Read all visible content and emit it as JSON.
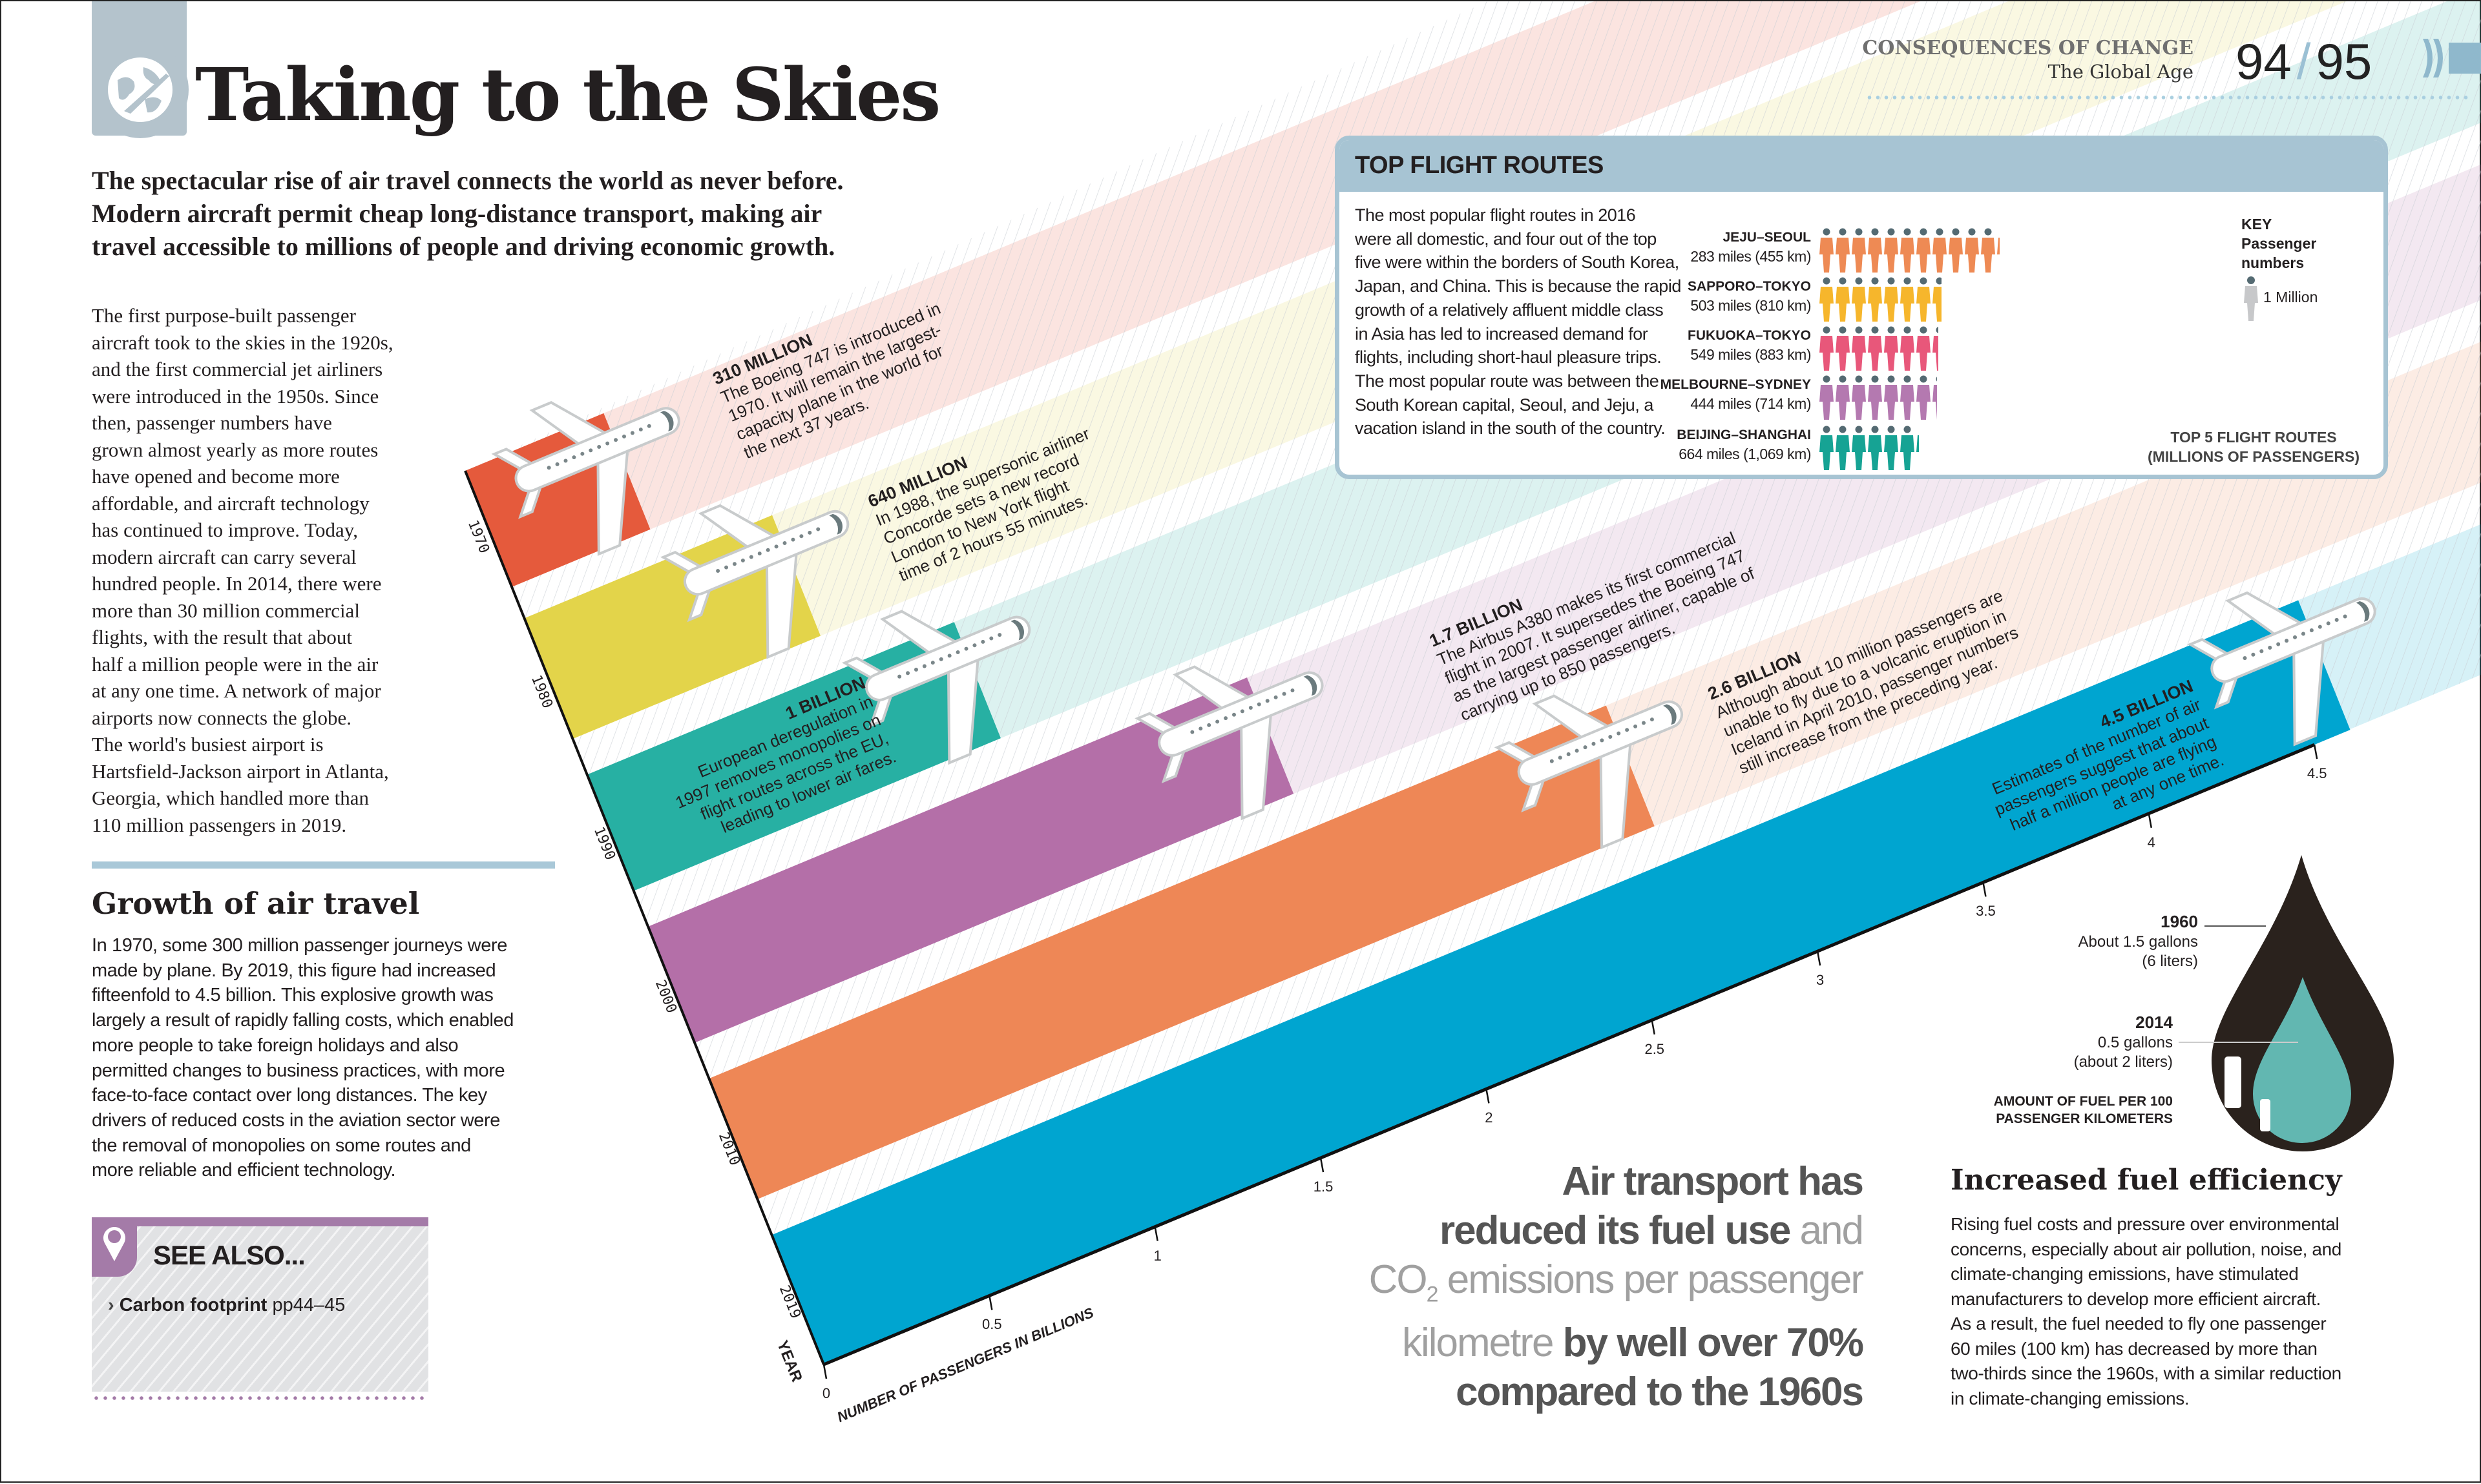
{
  "header": {
    "section": "CONSEQUENCES OF CHANGE",
    "subsection": "The Global Age",
    "page_left": "94",
    "page_sep": "/",
    "page_right": "95",
    "accent": "#a7c4d3"
  },
  "title": "Taking to the Skies",
  "title_icon": "globe-plane-icon",
  "intro": [
    "The spectacular rise of air travel connects the world as never before.",
    "Modern aircraft permit cheap long-distance transport, making air",
    "travel accessible to millions of people and driving economic growth."
  ],
  "body": [
    "The first purpose-built passenger",
    "aircraft took to the skies in the 1920s,",
    "and the first commercial jet airliners",
    "were introduced in the 1950s. Since",
    "then, passenger numbers have",
    "grown almost yearly as more routes",
    "have opened and become more",
    "affordable, and aircraft technology",
    "has continued to improve. Today,",
    "modern aircraft can carry several",
    "hundred people. In 2014, there were",
    "more than 30 million commercial",
    "flights, with the result that about",
    "half a million people were in the air",
    "at any one time. A network of major",
    "airports now connects the globe.",
    "The world's busiest airport is",
    "Hartsfield-Jackson airport in Atlanta,",
    "Georgia, which handled more than",
    "110 million passengers in 2019."
  ],
  "growth": {
    "heading": "Growth of air travel",
    "lines": [
      "In 1970, some 300 million passenger journeys were",
      "made by plane. By 2019, this figure had increased",
      "fifteenfold to 4.5 billion. This explosive growth was",
      "largely a result of rapidly falling costs, which enabled",
      "more people to take foreign holidays and also",
      "permitted changes to business practices, with more",
      "face-to-face contact over long distances. The key",
      "drivers of reduced costs in the aviation sector were",
      "the removal of monopolies on some routes and",
      "more reliable and efficient technology."
    ]
  },
  "see_also": {
    "heading": "SEE ALSO...",
    "item_bold": "Carbon footprint",
    "item_pages": "pp44–45",
    "icon": "map-pin-icon",
    "color": "#a47ba8"
  },
  "top_routes": {
    "heading": "TOP FLIGHT ROUTES",
    "text": [
      "The most popular flight routes in 2016",
      "were all domestic, and four out of the top",
      "five were within the borders of South Korea,",
      "Japan, and China. This is because the rapid",
      "growth of a relatively affluent middle class",
      "in Asia has led to increased demand for",
      "flights, including short-haul pleasure trips.",
      "The most popular route was between the",
      "South Korean capital, Seoul, and Jeju, a",
      "vacation island in the south of the country."
    ],
    "key_title": "KEY",
    "key_sub": "Passenger numbers",
    "key_unit": "1 Million",
    "caption_1": "TOP 5 FLIGHT ROUTES",
    "caption_2": "(MILLIONS OF PASSENGERS)"
  },
  "big_quote": {
    "l1": "Air transport has",
    "l2a": "reduced its fuel use",
    "l2b": "and",
    "l3a": "CO",
    "l3sub": "2",
    "l3b": "emissions per passenger",
    "l4a": "kilometre",
    "l4b": "by well over 70%",
    "l5": "compared to the 1960s"
  },
  "fuel": {
    "heading": "Increased fuel efficiency",
    "lines": [
      "Rising fuel costs and pressure over environmental",
      "concerns, especially about air pollution, noise, and",
      "climate-changing emissions, have stimulated",
      "manufacturers to develop more efficient aircraft.",
      "As a result, the fuel needed to fly one passenger",
      "60 miles (100 km) has decreased by more than",
      "two-thirds since the 1960s, with a similar reduction",
      "in climate-changing emissions."
    ]
  },
  "chart_data": [
    {
      "type": "bar",
      "orientation": "horizontal (drawn in oblique perspective)",
      "categories": [
        "1970",
        "1980",
        "1990",
        "2000",
        "2010",
        "2019"
      ],
      "values": [
        0.31,
        0.64,
        1.0,
        1.7,
        2.6,
        4.5
      ],
      "value_labels": [
        "310 MILLION",
        "640 MILLION",
        "1 BILLION",
        "1.7 BILLION",
        "2.6 BILLION",
        "4.5 BILLION"
      ],
      "annotations": [
        [
          "The Boeing 747 is introduced in",
          "1970. It will remain the largest-",
          "capacity plane in the world for",
          "the next 37 years."
        ],
        [
          "In 1988, the supersonic airliner",
          "Concorde sets a new record",
          "London to New York flight",
          "time of 2 hours 55 minutes."
        ],
        [
          "European deregulation in",
          "1997 removes monopolies on",
          "flight routes across the EU,",
          "leading to lower air fares."
        ],
        [
          "The Airbus A380 makes its first commercial",
          "flight in 2007. It supersedes the Boeing 747",
          "as the largest passenger airliner, capable of",
          "carrying up to 850 passengers."
        ],
        [
          "Although about 10 million passengers are",
          "unable to fly due to a volcanic eruption in",
          "Iceland in April 2010, passenger numbers",
          "still increase from the preceding year."
        ],
        [
          "Estimates of the number of air",
          "passengers suggest that about",
          "half a million people are flying",
          "at any one time."
        ]
      ],
      "colors": [
        "#e55a3c",
        "#e3d44a",
        "#27b0a3",
        "#b46fa8",
        "#ee8756",
        "#00a5d0"
      ],
      "xlabel": "NUMBER OF PASSENGERS IN BILLIONS",
      "ylabel": "YEAR",
      "xlim": [
        0,
        4.5
      ],
      "xticks": [
        "0",
        "0.5",
        "1",
        "1.5",
        "2",
        "2.5",
        "3",
        "3.5",
        "4",
        "4.5"
      ],
      "bar_icon": "airplane-icon",
      "grid": false
    },
    {
      "type": "pictogram",
      "title": "TOP 5 FLIGHT ROUTES (MILLIONS OF PASSENGERS)",
      "unit": "1 Million",
      "categories": [
        "JEJU–SEOUL",
        "SAPPORO–TOKYO",
        "FUKUOKA–TOKYO",
        "MELBOURNE–SYDNEY",
        "BEIJING–SHANGHAI"
      ],
      "distances": [
        "283 miles (455 km)",
        "503 miles (810 km)",
        "549 miles (883 km)",
        "444 miles (714 km)",
        "664 miles (1,069 km)"
      ],
      "values": [
        11.2,
        7.6,
        7.4,
        7.3,
        6.2
      ],
      "colors": [
        "#ee8a54",
        "#f6b62c",
        "#e8577a",
        "#b479b0",
        "#16a394"
      ],
      "icon": "person-icon"
    },
    {
      "type": "proportional-shape",
      "title": "AMOUNT OF FUEL PER 100 PASSENGER KILOMETERS",
      "categories": [
        "1960",
        "2014"
      ],
      "values_gallons": [
        1.5,
        0.5
      ],
      "labels": [
        [
          "About 1.5 gallons",
          "(6 liters)"
        ],
        [
          "0.5 gallons",
          "(about 2 liters)"
        ]
      ],
      "colors": [
        "#2a221d",
        "#62b7b1"
      ],
      "icon": "fuel-drop-icon"
    }
  ]
}
